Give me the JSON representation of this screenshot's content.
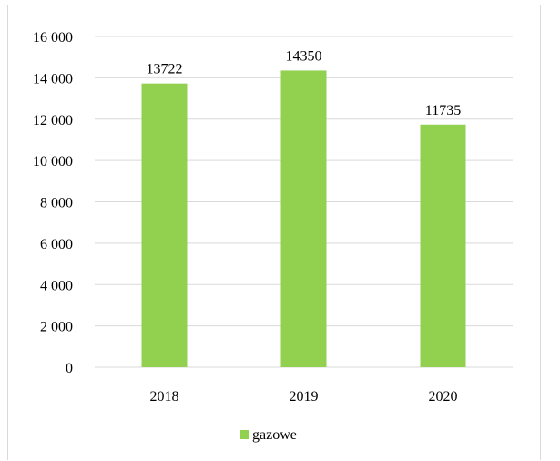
{
  "chart_data": {
    "type": "bar",
    "categories": [
      "2018",
      "2019",
      "2020"
    ],
    "series": [
      {
        "name": "gazowe",
        "values": [
          13722,
          14350,
          11735
        ],
        "color": "#92d050"
      }
    ],
    "data_labels": [
      "13722",
      "14350",
      "11735"
    ],
    "ylim": [
      0,
      16000
    ],
    "yticks": [
      0,
      2000,
      4000,
      6000,
      8000,
      10000,
      12000,
      14000,
      16000
    ],
    "ytick_labels": [
      "0",
      "2 000",
      "4 000",
      "6 000",
      "8 000",
      "10 000",
      "12 000",
      "14 000",
      "16 000"
    ],
    "grid": true,
    "grid_color": "#d9d9d9",
    "legend": {
      "position": "bottom",
      "entries": [
        "gazowe"
      ]
    },
    "title": "",
    "xlabel": "",
    "ylabel": ""
  }
}
